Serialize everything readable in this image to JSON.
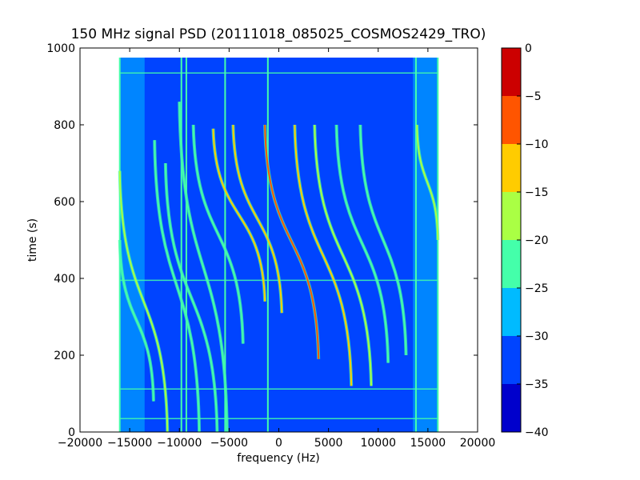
{
  "chart_data": {
    "type": "heatmap",
    "title": "150 MHz signal PSD (20111018_085025_COSMOS2429_TRO)",
    "xlabel": "frequency (Hz)",
    "ylabel": "time (s)",
    "xlim": [
      -20000,
      20000
    ],
    "ylim": [
      0,
      1000
    ],
    "x_ticks": [
      -20000,
      -15000,
      -10000,
      -5000,
      0,
      5000,
      10000,
      15000,
      20000
    ],
    "x_tick_labels": [
      "−20000",
      "−15000",
      "−10000",
      "−5000",
      "0",
      "5000",
      "10000",
      "15000",
      "20000"
    ],
    "y_ticks": [
      0,
      200,
      400,
      600,
      800,
      1000
    ],
    "y_tick_labels": [
      "0",
      "200",
      "400",
      "600",
      "800",
      "1000"
    ],
    "data_extent": {
      "x": [
        -16000,
        16000
      ],
      "t": [
        0,
        975
      ]
    },
    "background_level_db": -33,
    "edge_band_level_db": -28,
    "vertical_lines": [
      {
        "x": -16000,
        "level_db": -25
      },
      {
        "x": -9800,
        "level_db": -25
      },
      {
        "x": -9300,
        "level_db": -25
      },
      {
        "x": -5400,
        "level_db": -25
      },
      {
        "x": -1100,
        "level_db": -25
      },
      {
        "x": 13800,
        "level_db": -25
      },
      {
        "x": 16000,
        "level_db": -25
      }
    ],
    "horizontal_lines": [
      {
        "t": 35,
        "level_db": -25
      },
      {
        "t": 112,
        "level_db": -25
      },
      {
        "t": 395,
        "level_db": -25
      },
      {
        "t": 935,
        "level_db": -25
      }
    ],
    "traces": [
      {
        "x_top": -1400,
        "t_top": 800,
        "x_bottom": 4000,
        "t_bottom": 190,
        "level_db": -10
      },
      {
        "x_top": -6600,
        "t_top": 790,
        "x_bottom": -1400,
        "t_bottom": 340,
        "level_db": -15
      },
      {
        "x_top": -4600,
        "t_top": 800,
        "x_bottom": 300,
        "t_bottom": 310,
        "level_db": -15
      },
      {
        "x_top": 1600,
        "t_top": 800,
        "x_bottom": 7300,
        "t_bottom": 120,
        "level_db": -15
      },
      {
        "x_top": 3600,
        "t_top": 800,
        "x_bottom": 9300,
        "t_bottom": 120,
        "level_db": -20
      },
      {
        "x_top": -8600,
        "t_top": 800,
        "x_bottom": -3600,
        "t_bottom": 230,
        "level_db": -25
      },
      {
        "x_top": 5800,
        "t_top": 800,
        "x_bottom": 11000,
        "t_bottom": 180,
        "level_db": -25
      },
      {
        "x_top": 8200,
        "t_top": 800,
        "x_bottom": 12800,
        "t_bottom": 200,
        "level_db": -25
      },
      {
        "x_top": 13900,
        "t_top": 800,
        "x_bottom": 16000,
        "t_bottom": 500,
        "level_db": -20
      },
      {
        "x_top": -16000,
        "t_top": 680,
        "x_bottom": -11200,
        "t_bottom": 0,
        "level_db": -20
      },
      {
        "x_top": -16000,
        "t_top": 500,
        "x_bottom": -12600,
        "t_bottom": 80,
        "level_db": -25
      },
      {
        "x_top": -11400,
        "t_top": 700,
        "x_bottom": -6200,
        "t_bottom": 0,
        "level_db": -25
      },
      {
        "x_top": -12500,
        "t_top": 760,
        "x_bottom": -8000,
        "t_bottom": 0,
        "level_db": -25
      },
      {
        "x_top": -10000,
        "t_top": 860,
        "x_bottom": -5200,
        "t_bottom": 0,
        "level_db": -25
      }
    ],
    "colorbar": {
      "levels": [
        -40,
        -35,
        -30,
        -25,
        -20,
        -15,
        -10,
        -5,
        0
      ],
      "tick_labels": [
        "−40",
        "−35",
        "−30",
        "−25",
        "−20",
        "−15",
        "−10",
        "−5",
        "0"
      ],
      "colors": [
        "#0000cc",
        "#0044ff",
        "#00bbff",
        "#44ffaa",
        "#aaff44",
        "#ffcc00",
        "#ff5500",
        "#cc0000"
      ]
    },
    "grid": false
  }
}
